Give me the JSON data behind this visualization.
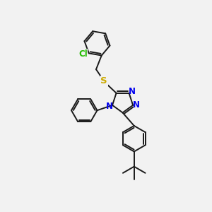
{
  "bg_color": "#f2f2f2",
  "bond_color": "#1a1a1a",
  "bond_width": 1.4,
  "N_color": "#0000ee",
  "S_color": "#ccaa00",
  "Cl_color": "#22bb00",
  "figsize": [
    3.0,
    3.0
  ],
  "dpi": 100,
  "xlim": [
    0,
    10
  ],
  "ylim": [
    0,
    10
  ]
}
